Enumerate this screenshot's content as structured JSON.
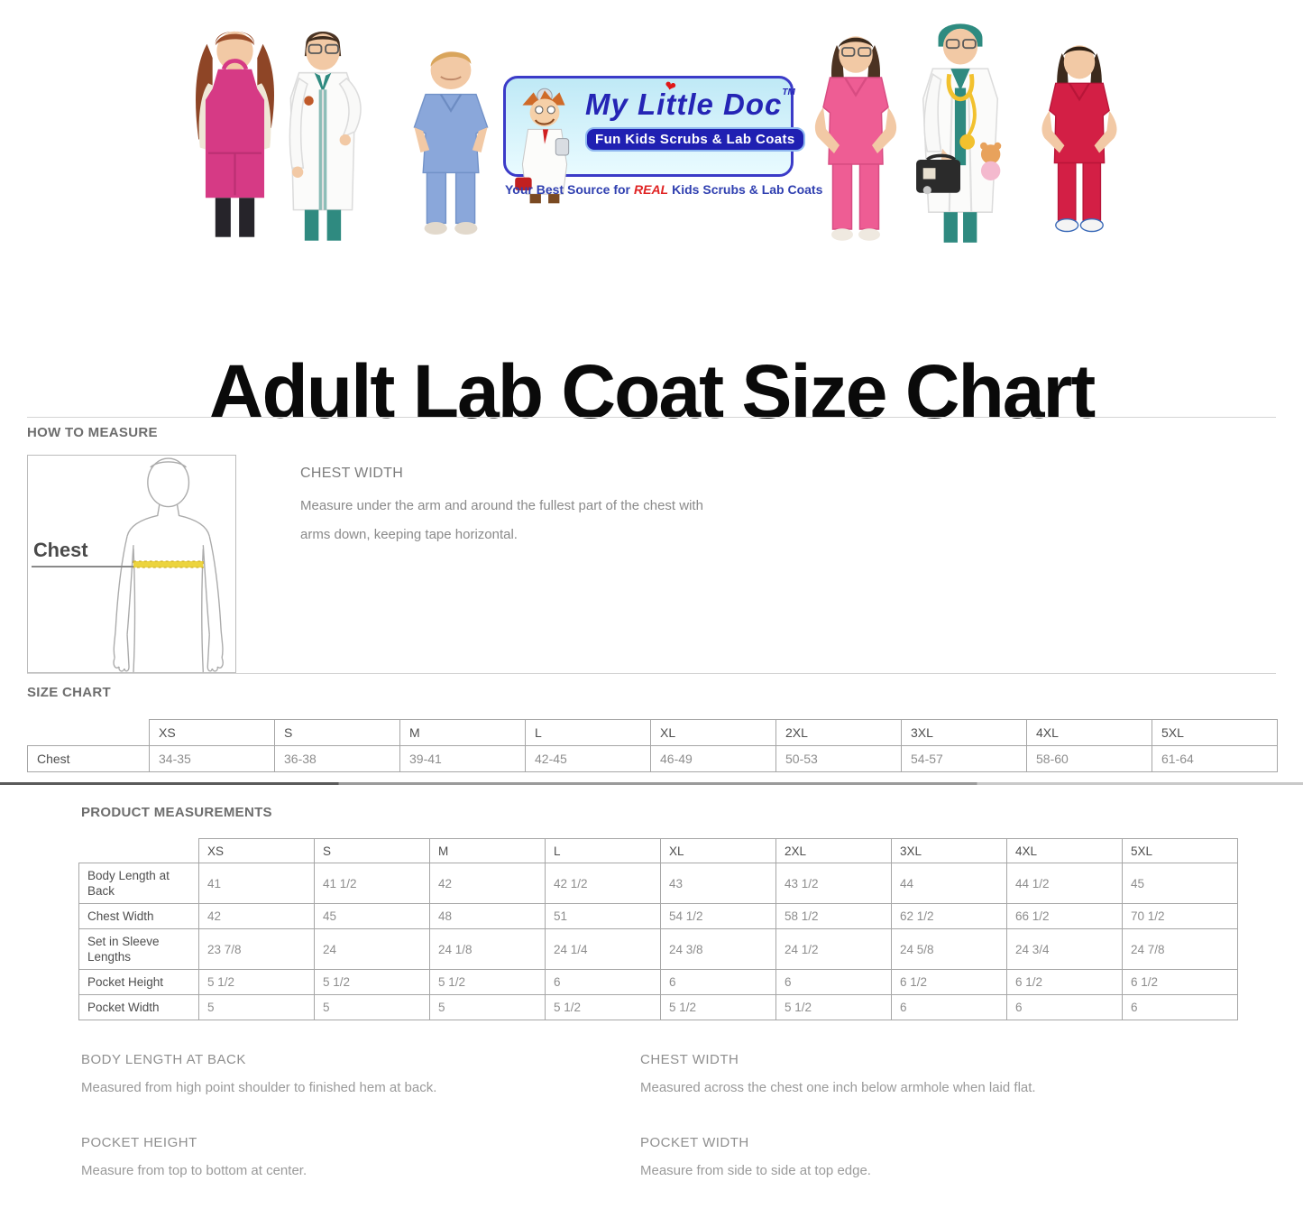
{
  "banner": {
    "photos": [
      "girl-in-pink-apron",
      "girl-in-white-lab-coat",
      "toddler-in-blue-scrubs",
      "girl-in-pink-scrubs",
      "kid-doctor-with-bag",
      "girl-in-red-scrubs"
    ],
    "logo": {
      "brand": "My Little Doc",
      "trademark": "TM",
      "pill": "Fun Kids Scrubs & Lab Coats",
      "tagline_prefix": "Your Best Source for",
      "tagline_emphasis": "REAL",
      "tagline_suffix": "Kids Scrubs & Lab Coats",
      "heart": "❤"
    }
  },
  "page_title": "Adult Lab Coat Size Chart",
  "how_to_measure": {
    "heading": "HOW TO MEASURE",
    "diagram_label": "Chest",
    "measure_name": "CHEST WIDTH",
    "measure_description": "Measure under the arm and around the fullest part of the chest with arms down, keeping tape horizontal."
  },
  "size_chart": {
    "heading": "SIZE CHART",
    "sizes": [
      "XS",
      "S",
      "M",
      "L",
      "XL",
      "2XL",
      "3XL",
      "4XL",
      "5XL"
    ],
    "rows": [
      {
        "label": "Chest",
        "values": [
          "34-35",
          "36-38",
          "39-41",
          "42-45",
          "46-49",
          "50-53",
          "54-57",
          "58-60",
          "61-64"
        ]
      }
    ]
  },
  "product_measurements": {
    "heading": "PRODUCT MEASUREMENTS",
    "sizes": [
      "XS",
      "S",
      "M",
      "L",
      "XL",
      "2XL",
      "3XL",
      "4XL",
      "5XL"
    ],
    "rows": [
      {
        "label": "Body Length at Back",
        "values": [
          "41",
          "41 1/2",
          "42",
          "42 1/2",
          "43",
          "43 1/2",
          "44",
          "44 1/2",
          "45"
        ]
      },
      {
        "label": "Chest Width",
        "values": [
          "42",
          "45",
          "48",
          "51",
          "54 1/2",
          "58 1/2",
          "62 1/2",
          "66 1/2",
          "70 1/2"
        ]
      },
      {
        "label": "Set in Sleeve Lengths",
        "values": [
          "23 7/8",
          "24",
          "24 1/8",
          "24 1/4",
          "24 3/8",
          "24 1/2",
          "24 5/8",
          "24 3/4",
          "24 7/8"
        ]
      },
      {
        "label": "Pocket Height",
        "values": [
          "5 1/2",
          "5 1/2",
          "5 1/2",
          "6",
          "6",
          "6",
          "6 1/2",
          "6 1/2",
          "6 1/2"
        ]
      },
      {
        "label": "Pocket Width",
        "values": [
          "5",
          "5",
          "5",
          "5 1/2",
          "5 1/2",
          "5 1/2",
          "6",
          "6",
          "6"
        ]
      }
    ]
  },
  "definitions": [
    {
      "term": "BODY LENGTH AT BACK",
      "description": "Measured from high point shoulder to finished hem at back."
    },
    {
      "term": "CHEST WIDTH",
      "description": "Measured across the chest one inch below armhole when laid flat."
    },
    {
      "term": "POCKET HEIGHT",
      "description": "Measure from top to bottom at center."
    },
    {
      "term": "POCKET WIDTH",
      "description": "Measure from side to side at top edge."
    }
  ],
  "colors": {
    "brand_blue": "#2525b5",
    "pill_blue": "#2020b2",
    "accent_red": "#e02424",
    "tape_yellow": "#ecd43e",
    "heading_gray": "#6d6d6d",
    "value_gray": "#8d8d8d",
    "apron_pink": "#d63a85",
    "scrub_teal": "#2f8a80",
    "scrub_blue": "#8aa7da",
    "scrub_hot_pink": "#ee5d94",
    "scrub_red": "#d31f45"
  }
}
